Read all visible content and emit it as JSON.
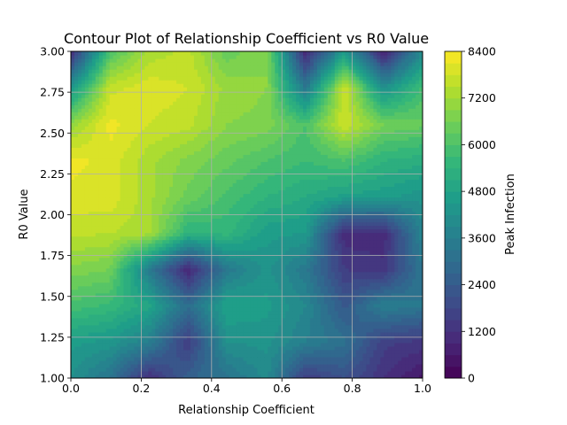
{
  "chart_data": {
    "type": "heatmap",
    "title": "Contour Plot of Relationship Coefficient vs R0 Value",
    "xlabel": "Relationship Coefficient",
    "ylabel": "R0 Value",
    "colorbar_label": "Peak Infection",
    "xlim": [
      0.0,
      1.0
    ],
    "ylim": [
      1.0,
      3.0
    ],
    "x_ticks": [
      "0.0",
      "0.2",
      "0.4",
      "0.6",
      "0.8",
      "1.0"
    ],
    "y_ticks": [
      "1.00",
      "1.25",
      "1.50",
      "1.75",
      "2.00",
      "2.25",
      "2.50",
      "2.75",
      "3.00"
    ],
    "colorbar_ticks": [
      "0",
      "1200",
      "2400",
      "3600",
      "4800",
      "6000",
      "7200",
      "8400"
    ],
    "colorbar_range": [
      0,
      8400
    ],
    "grid": true,
    "colormap": "viridis",
    "x": [
      0.0,
      0.111,
      0.222,
      0.333,
      0.444,
      0.556,
      0.667,
      0.778,
      0.889,
      1.0
    ],
    "y": [
      1.0,
      1.222,
      1.444,
      1.667,
      1.889,
      2.111,
      2.333,
      2.556,
      2.778,
      3.0
    ],
    "z": [
      [
        4200,
        3200,
        1100,
        2600,
        3200,
        4000,
        1500,
        2100,
        1200,
        500
      ],
      [
        4600,
        4400,
        3600,
        1500,
        4200,
        4300,
        3600,
        3100,
        1600,
        1400
      ],
      [
        5900,
        5600,
        4900,
        3000,
        4800,
        4600,
        3900,
        2300,
        3600,
        3300
      ],
      [
        6800,
        6600,
        3500,
        900,
        3400,
        4300,
        3400,
        1500,
        1300,
        3300
      ],
      [
        7600,
        7500,
        7300,
        5400,
        5500,
        4600,
        4500,
        1000,
        1000,
        3800
      ],
      [
        8000,
        8000,
        7300,
        6500,
        5900,
        5400,
        5100,
        4700,
        4600,
        4300
      ],
      [
        8200,
        8000,
        7300,
        6800,
        6400,
        6000,
        5700,
        6000,
        5400,
        5200
      ],
      [
        7000,
        8200,
        7800,
        7600,
        6900,
        6800,
        6000,
        7800,
        6600,
        6400
      ],
      [
        4400,
        7700,
        8000,
        7800,
        7100,
        6900,
        3400,
        7800,
        4200,
        5800
      ],
      [
        1000,
        6000,
        7300,
        7600,
        6400,
        6900,
        900,
        4500,
        800,
        4000
      ]
    ]
  }
}
